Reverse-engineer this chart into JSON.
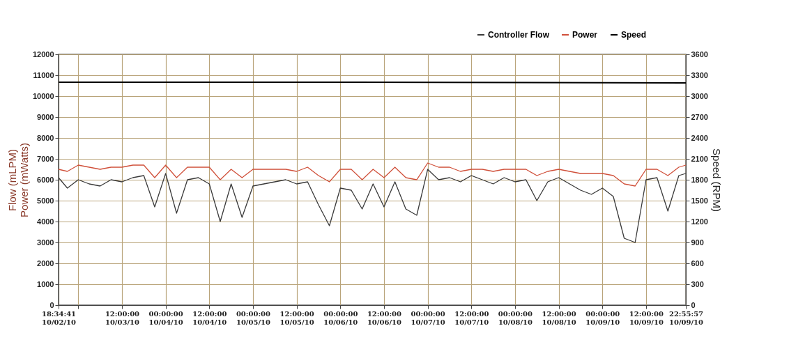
{
  "chart_data": {
    "type": "line",
    "xlabel": null,
    "ylabel": "Flow (mLPM)\nPower (mWatts)",
    "y2label": "Speed (RPM)",
    "x": [
      "--10-02T18:34:41",
      "--10-02T21:00",
      "--10-03T00:00",
      "--10-03T03:00",
      "--10-03T06:00",
      "--10-03T09:00",
      "--10-03T12:00",
      "--10-03T15:00",
      "--10-03T18:00",
      "--10-03T21:00",
      "--10-04T00:00",
      "--10-04T03:00",
      "--10-04T06:00",
      "--10-04T09:00",
      "--10-04T12:00",
      "--10-04T15:00",
      "--10-04T18:00",
      "--10-04T21:00",
      "--10-05T00:00",
      "--10-05T03:00",
      "--10-05T06:00",
      "--10-05T09:00",
      "--10-05T12:00",
      "--10-05T15:00",
      "--10-05T18:00",
      "--10-05T21:00",
      "--10-06T00:00",
      "--10-06T03:00",
      "--10-06T06:00",
      "--10-06T09:00",
      "--10-06T12:00",
      "--10-06T15:00",
      "--10-06T18:00",
      "--10-06T21:00",
      "--10-07T00:00",
      "--10-07T03:00",
      "--10-07T06:00",
      "--10-07T09:00",
      "--10-07T12:00",
      "--10-07T15:00",
      "--10-07T18:00",
      "--10-07T21:00",
      "--10-08T00:00",
      "--10-08T03:00",
      "--10-08T06:00",
      "--10-08T09:00",
      "--10-08T12:00",
      "--10-08T15:00",
      "--10-08T18:00",
      "--10-08T21:00",
      "--10-09T00:00",
      "--10-09T03:00",
      "--10-09T06:00",
      "--10-09T09:00",
      "--10-09T12:00",
      "--10-09T15:00",
      "--10-09T18:00",
      "--10-09T21:00",
      "--10-09T22:55:57"
    ],
    "series": [
      {
        "name": "Controller Flow",
        "color": "#3a3a3a",
        "values": [
          6100,
          5600,
          6000,
          5800,
          5700,
          6000,
          5900,
          6100,
          6200,
          4700,
          6300,
          4400,
          6000,
          6100,
          5800,
          4000,
          5800,
          4200,
          5700,
          5800,
          5900,
          6000,
          5800,
          5900,
          4800,
          3800,
          5600,
          5500,
          4600,
          5800,
          4700,
          5900,
          4600,
          4300,
          6500,
          6000,
          6100,
          5900,
          6200,
          6000,
          5800,
          6100,
          5900,
          6000,
          5000,
          5900,
          6100,
          5800,
          5500,
          5300,
          5600,
          5200,
          3200,
          3000,
          6000,
          6100,
          4500,
          6200,
          6300
        ]
      },
      {
        "name": "Power",
        "color": "#d0503a",
        "values": [
          6500,
          6400,
          6700,
          6600,
          6500,
          6600,
          6600,
          6700,
          6700,
          6100,
          6700,
          6100,
          6600,
          6600,
          6600,
          6000,
          6500,
          6100,
          6500,
          6500,
          6500,
          6500,
          6400,
          6600,
          6200,
          5900,
          6500,
          6500,
          6000,
          6500,
          6100,
          6600,
          6100,
          6000,
          6800,
          6600,
          6600,
          6400,
          6500,
          6500,
          6400,
          6500,
          6500,
          6500,
          6200,
          6400,
          6500,
          6400,
          6300,
          6300,
          6300,
          6200,
          5800,
          5700,
          6500,
          6500,
          6200,
          6600,
          6700
        ]
      },
      {
        "name": "Speed",
        "color": "#000000",
        "axis": "y2",
        "x": [
          "--10-02T18:34:41",
          "--10-06T00:00",
          "--10-09T22:55:57"
        ],
        "values": [
          3200,
          3200,
          3190
        ]
      }
    ],
    "xlim": [
      "--10-02T18:34:41",
      "--10-09T22:55:57"
    ],
    "xticks": [
      {
        "value": "--10-02T18:34:41",
        "label": "18:34:41\n10/02/10"
      },
      {
        "value": "--10-03T00:00",
        "label": null
      },
      {
        "value": "--10-03T12:00",
        "label": "12:00:00\n10/03/10"
      },
      {
        "value": "--10-04T00:00",
        "label": "00:00:00\n10/04/10"
      },
      {
        "value": "--10-04T12:00",
        "label": "12:00:00\n10/04/10"
      },
      {
        "value": "--10-05T00:00",
        "label": "00:00:00\n10/05/10"
      },
      {
        "value": "--10-05T12:00",
        "label": "12:00:00\n10/05/10"
      },
      {
        "value": "--10-06T00:00",
        "label": "00:00:00\n10/06/10"
      },
      {
        "value": "--10-06T12:00",
        "label": "12:00:00\n10/06/10"
      },
      {
        "value": "--10-07T00:00",
        "label": "00:00:00\n10/07/10"
      },
      {
        "value": "--10-07T12:00",
        "label": "12:00:00\n10/07/10"
      },
      {
        "value": "--10-08T00:00",
        "label": "00:00:00\n10/08/10"
      },
      {
        "value": "--10-08T12:00",
        "label": "12:00:00\n10/08/10"
      },
      {
        "value": "--10-09T00:00",
        "label": "00:00:00\n10/09/10"
      },
      {
        "value": "--10-09T12:00",
        "label": "12:00:00\n10/09/10"
      },
      {
        "value": "--10-09T22:55:57",
        "label": "22:55:57\n10/09/10"
      }
    ],
    "ylim": [
      0,
      12000
    ],
    "yticks": [
      0,
      1000,
      2000,
      3000,
      4000,
      5000,
      6000,
      7000,
      8000,
      9000,
      10000,
      11000,
      12000
    ],
    "y2lim": [
      0,
      3600
    ],
    "y2ticks": [
      0,
      300,
      600,
      900,
      1200,
      1500,
      1800,
      2100,
      2400,
      2700,
      3000,
      3300,
      3600
    ],
    "grid": true,
    "legend": "top right"
  }
}
